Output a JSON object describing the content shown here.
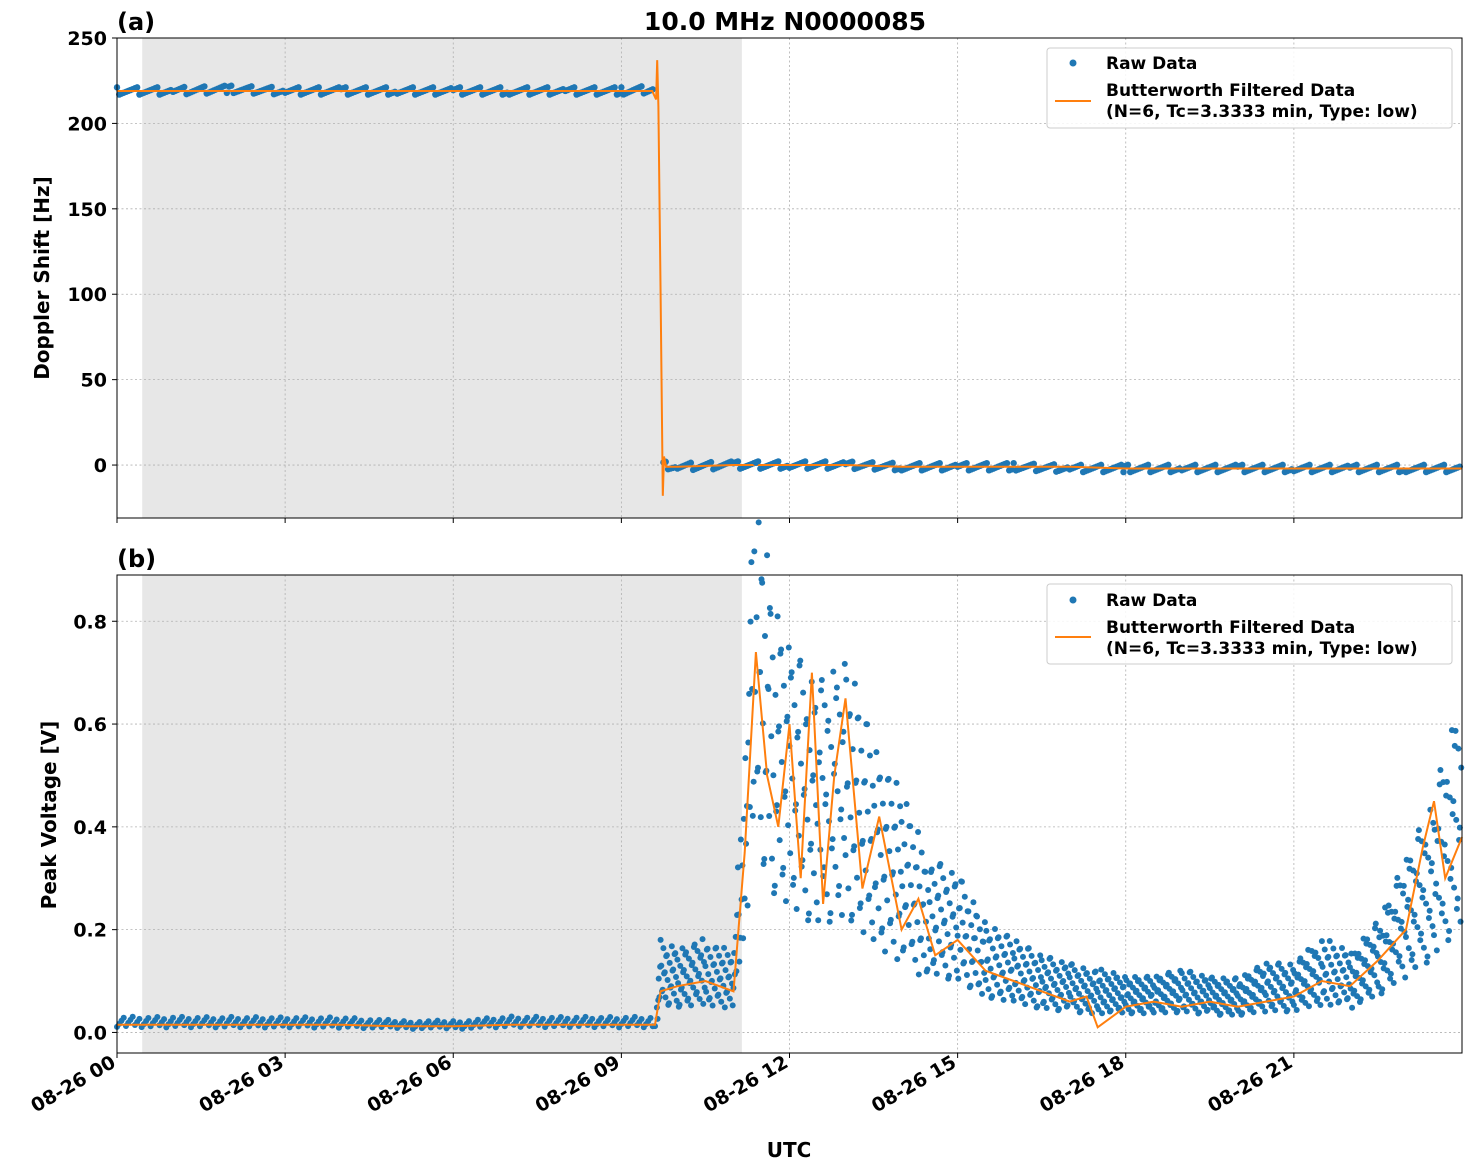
{
  "figure": {
    "title": "10.0 MHz N0000085",
    "xlabel": "UTC"
  },
  "colors": {
    "raw": "#1f77b4",
    "filtered": "#ff7f0e",
    "shade": "#d3d3d3"
  },
  "legend": {
    "raw_label": "Raw Data",
    "filtered_label_line1": "Butterworth Filtered Data",
    "filtered_label_line2": "(N=6, Tc=3.3333 min, Type: low)"
  },
  "x_ticks": [
    "08-26 00",
    "08-26 03",
    "08-26 06",
    "08-26 09",
    "08-26 12",
    "08-26 15",
    "08-26 18",
    "08-26 21"
  ],
  "chart_data": [
    {
      "panel": "(a)",
      "type": "line",
      "ylabel": "Doppler Shift [Hz]",
      "x_unit": "hours UTC on 08-26",
      "xlim": [
        0,
        24
      ],
      "ylim": [
        -31,
        250
      ],
      "yticks": [
        0,
        50,
        100,
        150,
        200,
        250
      ],
      "grid": true,
      "legend_position": "top-right",
      "shaded_interval": [
        0.45,
        11.15
      ],
      "series": [
        {
          "name": "Raw Data",
          "style": "markers",
          "x": [
            0,
            1,
            2,
            3,
            4,
            5,
            6,
            7,
            8,
            9,
            9.6,
            9.75,
            10,
            11,
            12,
            13,
            14,
            15,
            16,
            17,
            18,
            19,
            20,
            21,
            22,
            23,
            24
          ],
          "y": [
            219,
            219,
            220,
            219,
            219,
            219,
            219,
            219,
            219,
            219,
            220,
            0,
            -1,
            0,
            0,
            0,
            -1,
            -1,
            -1,
            -2,
            -2,
            -2,
            -2,
            -2,
            -2,
            -2,
            -2
          ]
        },
        {
          "name": "Butterworth Filtered Data (N=6, Tc=3.3333 min, Type: low)",
          "style": "line",
          "x": [
            0,
            1,
            2,
            3,
            4,
            5,
            6,
            7,
            8,
            9,
            9.55,
            9.62,
            9.64,
            9.66,
            9.7,
            9.74,
            9.76,
            9.8,
            10,
            11,
            12,
            13,
            14,
            15,
            16,
            17,
            18,
            19,
            20,
            21,
            22,
            23,
            24
          ],
          "y": [
            219,
            219,
            219,
            219,
            219,
            219,
            219,
            219,
            219,
            219,
            219,
            214,
            237,
            210,
            100,
            -18,
            5,
            -1,
            -1,
            0,
            0,
            0,
            -1,
            -1,
            -1,
            -1,
            -2,
            -2,
            -2,
            -2,
            -2,
            -2,
            -2
          ]
        }
      ]
    },
    {
      "panel": "(b)",
      "type": "line",
      "ylabel": "Peak Voltage [V]",
      "x_unit": "hours UTC on 08-26",
      "xlim": [
        0,
        24
      ],
      "ylim": [
        -0.04,
        0.89
      ],
      "yticks": [
        0.0,
        0.2,
        0.4,
        0.6,
        0.8
      ],
      "grid": true,
      "legend_position": "top-right",
      "shaded_interval": [
        0.45,
        11.15
      ],
      "series": [
        {
          "name": "Raw Data",
          "style": "markers",
          "x": [
            0,
            1,
            2,
            3,
            4,
            5,
            6,
            7,
            8,
            9,
            9.6,
            9.7,
            10,
            10.5,
            11,
            11.2,
            11.4,
            11.7,
            12,
            12.5,
            13,
            13.5,
            14,
            14.5,
            15,
            15.5,
            16,
            16.5,
            17,
            17.5,
            18,
            18.5,
            19,
            19.5,
            20,
            20.5,
            21,
            21.5,
            22,
            22.5,
            23,
            23.5,
            24
          ],
          "y": [
            0.02,
            0.02,
            0.02,
            0.02,
            0.02,
            0.015,
            0.015,
            0.02,
            0.02,
            0.02,
            0.02,
            0.12,
            0.11,
            0.12,
            0.1,
            0.4,
            0.72,
            0.55,
            0.5,
            0.45,
            0.5,
            0.38,
            0.3,
            0.22,
            0.2,
            0.14,
            0.12,
            0.1,
            0.09,
            0.08,
            0.07,
            0.07,
            0.08,
            0.07,
            0.07,
            0.09,
            0.09,
            0.12,
            0.1,
            0.14,
            0.22,
            0.3,
            0.45
          ]
        },
        {
          "name": "Butterworth Filtered Data (N=6, Tc=3.3333 min, Type: low)",
          "style": "line",
          "x": [
            0,
            1,
            2,
            3,
            4,
            5,
            6,
            7,
            8,
            9,
            9.6,
            9.7,
            10,
            10.5,
            11,
            11.2,
            11.4,
            11.6,
            11.8,
            12,
            12.2,
            12.4,
            12.6,
            12.8,
            13,
            13.3,
            13.6,
            14,
            14.3,
            14.6,
            15,
            15.5,
            16,
            16.5,
            17,
            17.3,
            17.5,
            18,
            18.5,
            19,
            19.5,
            20,
            20.5,
            21,
            21.5,
            22,
            22.5,
            23,
            23.3,
            23.5,
            23.7,
            24
          ],
          "y": [
            0.015,
            0.015,
            0.015,
            0.015,
            0.015,
            0.012,
            0.012,
            0.015,
            0.015,
            0.015,
            0.015,
            0.08,
            0.09,
            0.1,
            0.08,
            0.35,
            0.74,
            0.5,
            0.4,
            0.6,
            0.3,
            0.7,
            0.25,
            0.5,
            0.65,
            0.28,
            0.42,
            0.2,
            0.26,
            0.15,
            0.18,
            0.12,
            0.1,
            0.08,
            0.06,
            0.07,
            0.01,
            0.05,
            0.06,
            0.05,
            0.06,
            0.05,
            0.06,
            0.07,
            0.1,
            0.09,
            0.14,
            0.2,
            0.36,
            0.45,
            0.3,
            0.38
          ]
        }
      ]
    }
  ]
}
